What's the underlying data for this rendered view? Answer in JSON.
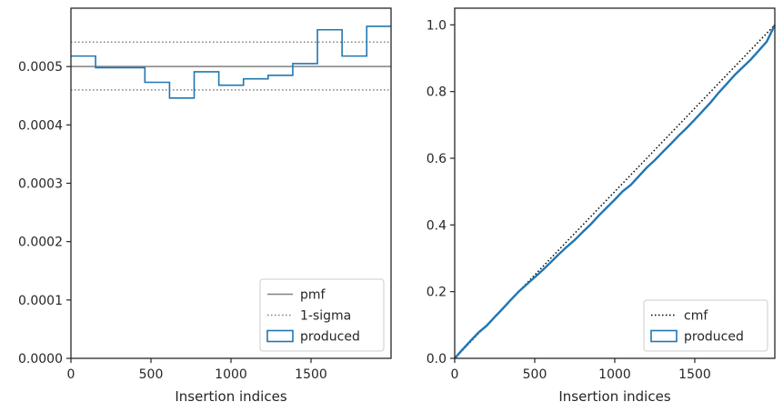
{
  "chart_data": [
    {
      "type": "histogram",
      "xlabel": "Insertion indices",
      "ylabel": "",
      "xlim": [
        0,
        2000
      ],
      "ylim": [
        0,
        0.0006
      ],
      "xticks": [
        0,
        500,
        1000,
        1500
      ],
      "xtick_labels": [
        "0",
        "500",
        "1000",
        "1500"
      ],
      "yticks": [
        0,
        0.0001,
        0.0002,
        0.0003,
        0.0004,
        0.0005
      ],
      "ytick_labels": [
        "0.0000",
        "0.0001",
        "0.0002",
        "0.0003",
        "0.0004",
        "0.0005"
      ],
      "pmf": 0.0005,
      "sigma_band": [
        0.00046,
        0.000542
      ],
      "bin_edges": [
        0,
        154,
        462,
        616,
        770,
        924,
        1078,
        1232,
        1386,
        1540,
        1694,
        1848,
        2000
      ],
      "values": [
        0.000518,
        0.000498,
        0.000473,
        0.000446,
        0.000491,
        0.000468,
        0.000479,
        0.000485,
        0.000505,
        0.000563,
        0.000518,
        0.000569
      ],
      "legend": {
        "position": "lower-right",
        "entries": [
          {
            "label": "pmf",
            "style": "solid",
            "color": "#808080"
          },
          {
            "label": "1-sigma",
            "style": "dotted",
            "color": "#808080"
          },
          {
            "label": "produced",
            "style": "step",
            "color": "#1f77b4"
          }
        ]
      },
      "grid": false
    },
    {
      "type": "line",
      "xlabel": "Insertion indices",
      "ylabel": "",
      "xlim": [
        0,
        2000
      ],
      "ylim": [
        0,
        1.05
      ],
      "xticks": [
        0,
        500,
        1000,
        1500
      ],
      "xtick_labels": [
        "0",
        "500",
        "1000",
        "1500"
      ],
      "yticks": [
        0,
        0.2,
        0.4,
        0.6,
        0.8,
        1.0
      ],
      "ytick_labels": [
        "0.0",
        "0.2",
        "0.4",
        "0.6",
        "0.8",
        "1.0"
      ],
      "series": [
        {
          "name": "cmf",
          "style": "dotted",
          "color": "#000000",
          "x": [
            0,
            2000
          ],
          "y": [
            0,
            1.0
          ]
        },
        {
          "name": "produced",
          "style": "solid",
          "color": "#1f77b4",
          "x": [
            0,
            50,
            100,
            150,
            200,
            250,
            300,
            350,
            400,
            450,
            500,
            550,
            600,
            650,
            700,
            750,
            800,
            850,
            900,
            950,
            1000,
            1050,
            1100,
            1150,
            1200,
            1250,
            1300,
            1350,
            1400,
            1450,
            1500,
            1550,
            1600,
            1650,
            1700,
            1750,
            1800,
            1850,
            1900,
            1950,
            2000
          ],
          "y": [
            0,
            0.027,
            0.053,
            0.078,
            0.098,
            0.124,
            0.149,
            0.175,
            0.2,
            0.222,
            0.243,
            0.265,
            0.288,
            0.312,
            0.334,
            0.355,
            0.379,
            0.402,
            0.428,
            0.452,
            0.476,
            0.501,
            0.52,
            0.546,
            0.572,
            0.594,
            0.619,
            0.643,
            0.668,
            0.691,
            0.716,
            0.742,
            0.768,
            0.797,
            0.823,
            0.85,
            0.873,
            0.896,
            0.923,
            0.95,
            1.0
          ]
        }
      ],
      "legend": {
        "position": "lower-right",
        "entries": [
          {
            "label": "cmf",
            "style": "dotted",
            "color": "#000000"
          },
          {
            "label": "produced",
            "style": "step",
            "color": "#1f77b4"
          }
        ]
      },
      "grid": false
    }
  ]
}
